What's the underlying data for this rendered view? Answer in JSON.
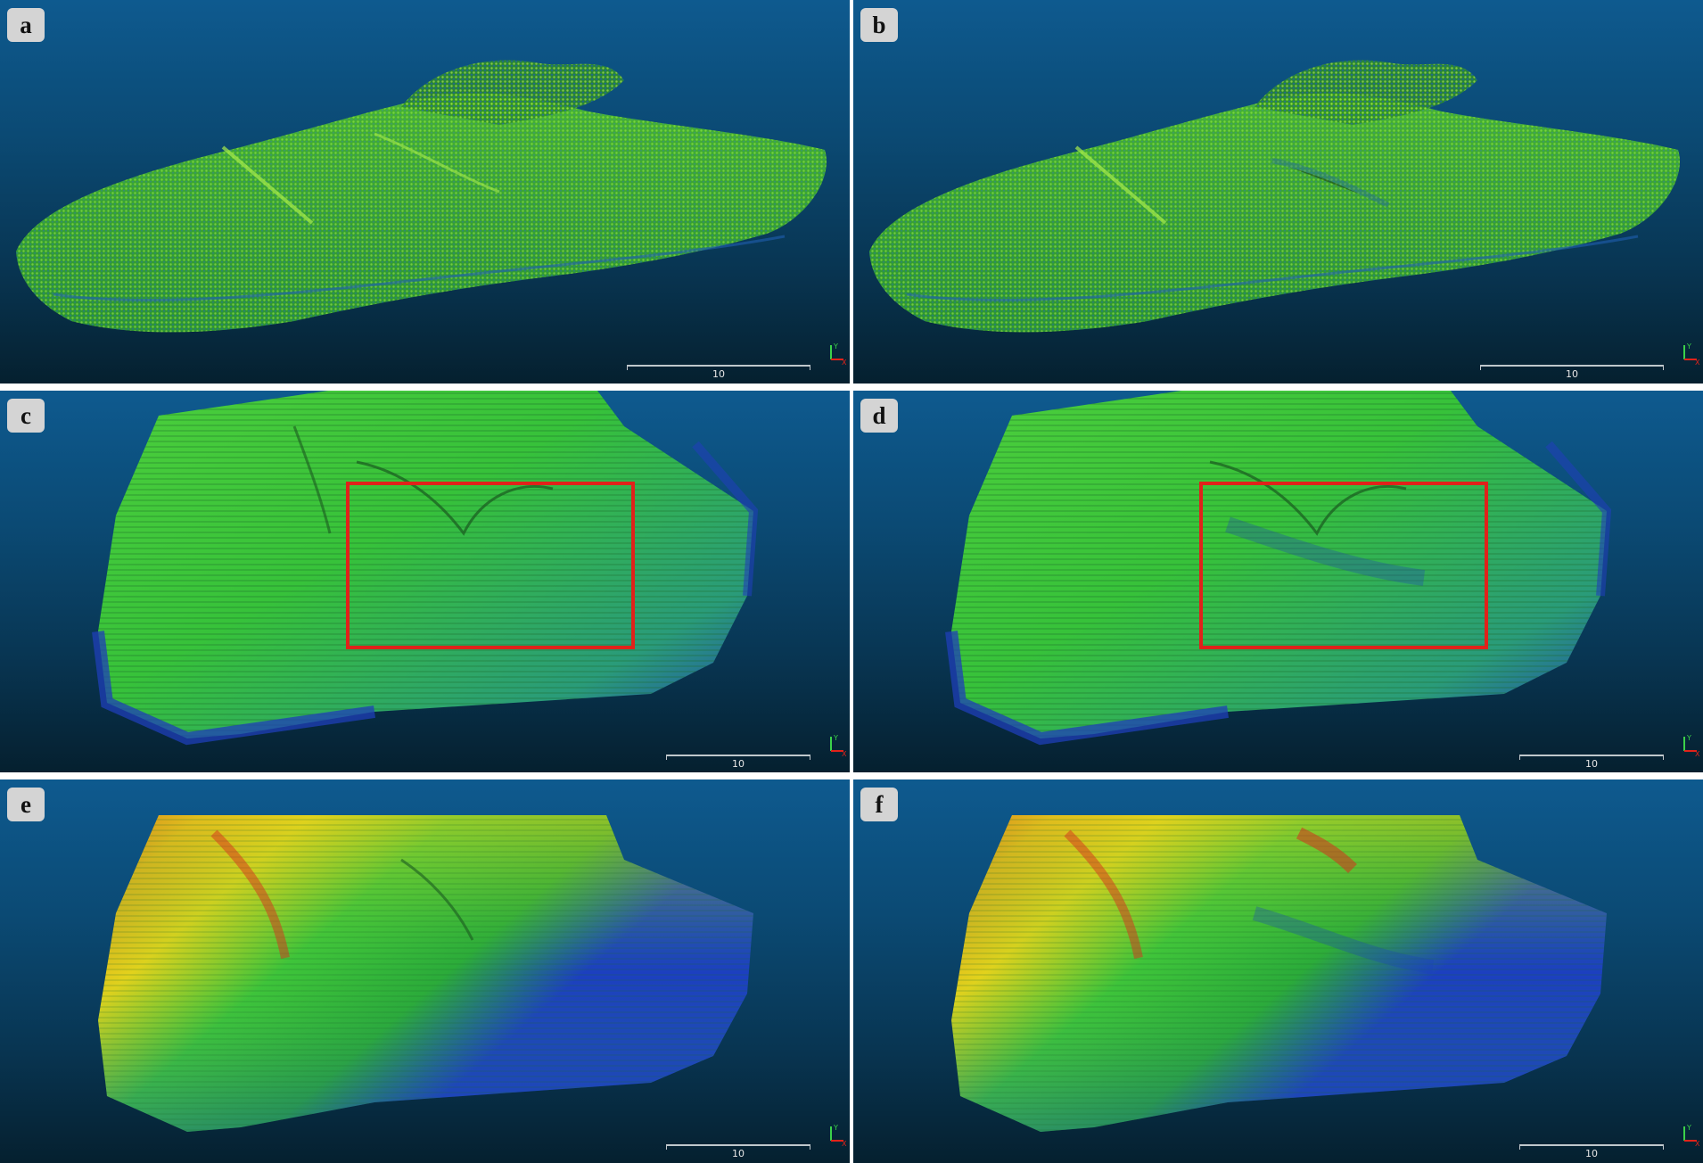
{
  "figure": {
    "panels": [
      {
        "id": "a",
        "label": "a",
        "view": "point-cloud",
        "scale_label": "10"
      },
      {
        "id": "b",
        "label": "b",
        "view": "point-cloud",
        "scale_label": "10"
      },
      {
        "id": "c",
        "label": "c",
        "view": "mesh-normals",
        "scale_label": "10",
        "highlight": true
      },
      {
        "id": "d",
        "label": "d",
        "view": "mesh-normals",
        "scale_label": "10",
        "highlight": true
      },
      {
        "id": "e",
        "label": "e",
        "view": "mesh-elevation",
        "scale_label": "10"
      },
      {
        "id": "f",
        "label": "f",
        "view": "mesh-elevation",
        "scale_label": "10"
      }
    ],
    "axis_labels": {
      "y": "Y",
      "x": "X"
    }
  },
  "colors": {
    "point_green": "#3dbb3a",
    "mesh_green": "#37c23a",
    "mesh_blue": "#1f3fb8",
    "elev_red": "#d6321c",
    "elev_yellow": "#e2d21c",
    "elev_green": "#3ec43a",
    "elev_blue": "#1c3fc0",
    "highlight_box": "#e0221a"
  },
  "icons": [
    "axis-triad-icon"
  ]
}
